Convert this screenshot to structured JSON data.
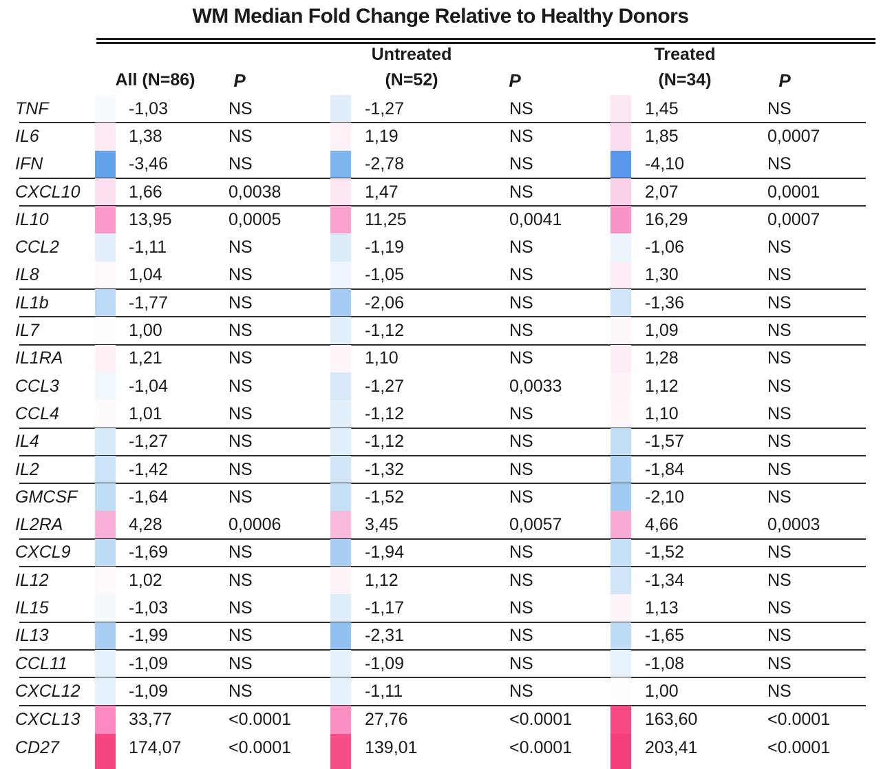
{
  "title": "WM Median Fold Change Relative to Healthy Donors",
  "header": {
    "all": "All (N=86)",
    "untreated": "Untreated",
    "untreated_n": "(N=52)",
    "treated": "Treated",
    "treated_n": "(N=34)",
    "p": "P"
  },
  "chart_data": {
    "type": "table",
    "subtype": "heatmap-table",
    "title": "WM Median Fold Change Relative to Healthy Donors",
    "columns": [
      "All (N=86)",
      "P",
      "Untreated (N=52)",
      "P",
      "Treated (N=34)",
      "P"
    ],
    "value_format": "comma-decimal fold change; NS = not significant",
    "color_scale": {
      "increase": "#F43E7B",
      "decrease": "#5997EA",
      "neutral": "#FFFFFF"
    },
    "rows": [
      {
        "gene": "TNF",
        "all": {
          "value": "-1,03",
          "p": "NS",
          "color": "#F5FAFD"
        },
        "untreated": {
          "value": "-1,27",
          "p": "NS",
          "color": "#DFEEFA"
        },
        "treated": {
          "value": "1,45",
          "p": "NS",
          "color": "#FBE6F2"
        },
        "rule_below": true
      },
      {
        "gene": "IL6",
        "all": {
          "value": "1,38",
          "p": "NS",
          "color": "#FCE9F4"
        },
        "untreated": {
          "value": "1,19",
          "p": "NS",
          "color": "#FDF2F8"
        },
        "treated": {
          "value": "1,85",
          "p": "0,0007",
          "color": "#FADCEE"
        },
        "rule_below": false
      },
      {
        "gene": "IFN",
        "all": {
          "value": "-3,46",
          "p": "NS",
          "color": "#63A3ED"
        },
        "untreated": {
          "value": "-2,78",
          "p": "NS",
          "color": "#7DB5F0"
        },
        "treated": {
          "value": "-4,10",
          "p": "NS",
          "color": "#5997EA"
        },
        "rule_below": true
      },
      {
        "gene": "CXCL10",
        "all": {
          "value": "1,66",
          "p": "0,0038",
          "color": "#FBE0F0"
        },
        "untreated": {
          "value": "1,47",
          "p": "NS",
          "color": "#FCE6F3"
        },
        "treated": {
          "value": "2,07",
          "p": "0,0001",
          "color": "#F9D1E8"
        },
        "rule_below": true
      },
      {
        "gene": "IL10",
        "all": {
          "value": "13,95",
          "p": "0,0005",
          "color": "#F998C9"
        },
        "untreated": {
          "value": "11,25",
          "p": "0,0041",
          "color": "#F9A2CE"
        },
        "treated": {
          "value": "16,29",
          "p": "0,0007",
          "color": "#F893C6"
        },
        "rule_below": false
      },
      {
        "gene": "CCL2",
        "all": {
          "value": "-1,11",
          "p": "NS",
          "color": "#E3F0FB"
        },
        "untreated": {
          "value": "-1,19",
          "p": "NS",
          "color": "#DCEDFA"
        },
        "treated": {
          "value": "-1,06",
          "p": "NS",
          "color": "#EDF5FC"
        },
        "rule_below": false
      },
      {
        "gene": "IL8",
        "all": {
          "value": "1,04",
          "p": "NS",
          "color": "#FEF9FC"
        },
        "untreated": {
          "value": "-1,05",
          "p": "NS",
          "color": "#EFF6FD"
        },
        "treated": {
          "value": "1,30",
          "p": "NS",
          "color": "#FCECF6"
        },
        "rule_below": true
      },
      {
        "gene": "IL1b",
        "all": {
          "value": "-1,77",
          "p": "NS",
          "color": "#BCDAF5"
        },
        "untreated": {
          "value": "-2,06",
          "p": "NS",
          "color": "#A3CBF3"
        },
        "treated": {
          "value": "-1,36",
          "p": "NS",
          "color": "#D0E5F8"
        },
        "rule_below": true
      },
      {
        "gene": "IL7",
        "all": {
          "value": "1,00",
          "p": "NS",
          "color": "#FEFDFE"
        },
        "untreated": {
          "value": "-1,12",
          "p": "NS",
          "color": "#E2F0FB"
        },
        "treated": {
          "value": "1,09",
          "p": "NS",
          "color": "#FEF7FB"
        },
        "rule_below": true
      },
      {
        "gene": "IL1RA",
        "all": {
          "value": "1,21",
          "p": "NS",
          "color": "#FDF0F7"
        },
        "untreated": {
          "value": "1,10",
          "p": "NS",
          "color": "#FEF6FA"
        },
        "treated": {
          "value": "1,28",
          "p": "NS",
          "color": "#FCEEF6"
        },
        "rule_below": false
      },
      {
        "gene": "CCL3",
        "all": {
          "value": "-1,04",
          "p": "NS",
          "color": "#F0F7FD"
        },
        "untreated": {
          "value": "-1,27",
          "p": "0,0033",
          "color": "#D8EAF9"
        },
        "treated": {
          "value": "1,12",
          "p": "NS",
          "color": "#FDF5FA"
        },
        "rule_below": false
      },
      {
        "gene": "CCL4",
        "all": {
          "value": "1,01",
          "p": "NS",
          "color": "#FEFBFD"
        },
        "untreated": {
          "value": "-1,12",
          "p": "NS",
          "color": "#E2F0FB"
        },
        "treated": {
          "value": "1,10",
          "p": "NS",
          "color": "#FEF6FA"
        },
        "rule_below": true
      },
      {
        "gene": "IL4",
        "all": {
          "value": "-1,27",
          "p": "NS",
          "color": "#D7EAF9"
        },
        "untreated": {
          "value": "-1,12",
          "p": "NS",
          "color": "#E2F0FB"
        },
        "treated": {
          "value": "-1,57",
          "p": "NS",
          "color": "#C3DFF6"
        },
        "rule_below": true
      },
      {
        "gene": "IL2",
        "all": {
          "value": "-1,42",
          "p": "NS",
          "color": "#CBE3F8"
        },
        "untreated": {
          "value": "-1,32",
          "p": "NS",
          "color": "#D2E6F8"
        },
        "treated": {
          "value": "-1,84",
          "p": "NS",
          "color": "#B0D3F4"
        },
        "rule_below": true
      },
      {
        "gene": "GMCSF",
        "all": {
          "value": "-1,64",
          "p": "NS",
          "color": "#C0DDF6"
        },
        "untreated": {
          "value": "-1,52",
          "p": "NS",
          "color": "#C6E0F7"
        },
        "treated": {
          "value": "-2,10",
          "p": "NS",
          "color": "#A0CAF2"
        },
        "rule_below": false
      },
      {
        "gene": "IL2RA",
        "all": {
          "value": "4,28",
          "p": "0,0006",
          "color": "#F9AFD6"
        },
        "untreated": {
          "value": "3,45",
          "p": "0,0057",
          "color": "#F8B9DB"
        },
        "treated": {
          "value": "4,66",
          "p": "0,0003",
          "color": "#F8AAD3"
        },
        "rule_below": true
      },
      {
        "gene": "CXCL9",
        "all": {
          "value": "-1,69",
          "p": "NS",
          "color": "#BEDCF6"
        },
        "untreated": {
          "value": "-1,94",
          "p": "NS",
          "color": "#A8CEF3"
        },
        "treated": {
          "value": "-1,52",
          "p": "NS",
          "color": "#C6E0F7"
        },
        "rule_below": true
      },
      {
        "gene": "IL12",
        "all": {
          "value": "1,02",
          "p": "NS",
          "color": "#FEFAFC"
        },
        "untreated": {
          "value": "1,12",
          "p": "NS",
          "color": "#FDF4F9"
        },
        "treated": {
          "value": "-1,34",
          "p": "NS",
          "color": "#D1E5F8"
        },
        "rule_below": false
      },
      {
        "gene": "IL15",
        "all": {
          "value": "-1,03",
          "p": "NS",
          "color": "#F3F9FD"
        },
        "untreated": {
          "value": "-1,17",
          "p": "NS",
          "color": "#DDEEFA"
        },
        "treated": {
          "value": "1,13",
          "p": "NS",
          "color": "#FDF4F9"
        },
        "rule_below": true
      },
      {
        "gene": "IL13",
        "all": {
          "value": "-1,99",
          "p": "NS",
          "color": "#A8CEF3"
        },
        "untreated": {
          "value": "-2,31",
          "p": "NS",
          "color": "#92C1F1"
        },
        "treated": {
          "value": "-1,65",
          "p": "NS",
          "color": "#BFDCF6"
        },
        "rule_below": true
      },
      {
        "gene": "CCL11",
        "all": {
          "value": "-1,09",
          "p": "NS",
          "color": "#E6F2FB"
        },
        "untreated": {
          "value": "-1,09",
          "p": "NS",
          "color": "#E6F2FB"
        },
        "treated": {
          "value": "-1,08",
          "p": "NS",
          "color": "#E7F2FB"
        },
        "rule_below": true
      },
      {
        "gene": "CXCL12",
        "all": {
          "value": "-1,09",
          "p": "NS",
          "color": "#E6F2FB"
        },
        "untreated": {
          "value": "-1,11",
          "p": "NS",
          "color": "#E4F1FB"
        },
        "treated": {
          "value": "1,00",
          "p": "NS",
          "color": "#FEFDFE"
        },
        "rule_below": true
      },
      {
        "gene": "CXCL13",
        "all": {
          "value": "33,77",
          "p": "<0.0001",
          "color": "#FA8AC1"
        },
        "untreated": {
          "value": "27,76",
          "p": "<0.0001",
          "color": "#FA90C4"
        },
        "treated": {
          "value": "163,60",
          "p": "<0.0001",
          "color": "#F74A85"
        },
        "rule_below": false
      },
      {
        "gene": "CD27",
        "all": {
          "value": "174,07",
          "p": "<0.0001",
          "color": "#F44580"
        },
        "untreated": {
          "value": "139,01",
          "p": "<0.0001",
          "color": "#F54E88"
        },
        "treated": {
          "value": "203,41",
          "p": "<0.0001",
          "color": "#F43E7B"
        },
        "rule_below": false
      }
    ]
  }
}
